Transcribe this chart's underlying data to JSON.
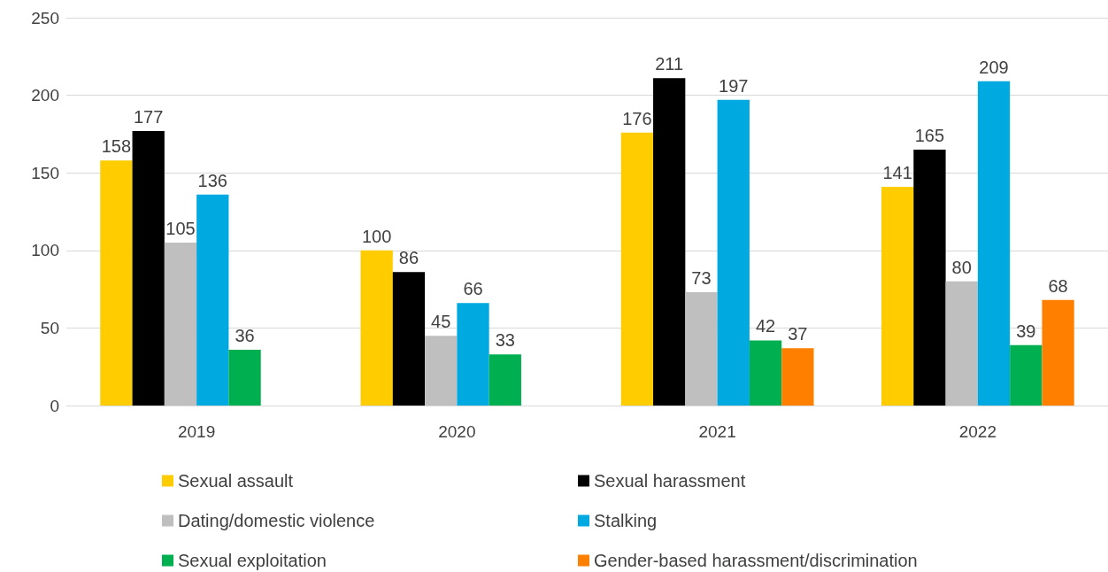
{
  "chart_data": {
    "type": "bar",
    "categories": [
      "2019",
      "2020",
      "2021",
      "2022"
    ],
    "series": [
      {
        "name": "Sexual assault",
        "color": "#ffcc00",
        "values": [
          158,
          100,
          176,
          141
        ]
      },
      {
        "name": "Sexual harassment",
        "color": "#000000",
        "values": [
          177,
          86,
          211,
          165
        ]
      },
      {
        "name": "Dating/domestic violence",
        "color": "#bfbfbf",
        "values": [
          105,
          45,
          73,
          80
        ]
      },
      {
        "name": "Stalking",
        "color": "#00a9e0",
        "values": [
          136,
          66,
          197,
          209
        ]
      },
      {
        "name": "Sexual exploitation",
        "color": "#00b050",
        "values": [
          36,
          33,
          42,
          39
        ]
      },
      {
        "name": "Gender-based harassment/discrimination",
        "color": "#ff8000",
        "values": [
          null,
          null,
          37,
          68
        ]
      }
    ],
    "ylim": [
      0,
      250
    ],
    "yticks": [
      0,
      50,
      100,
      150,
      200,
      250
    ],
    "grid": "y",
    "legend": "bottom",
    "data_labels": true
  }
}
